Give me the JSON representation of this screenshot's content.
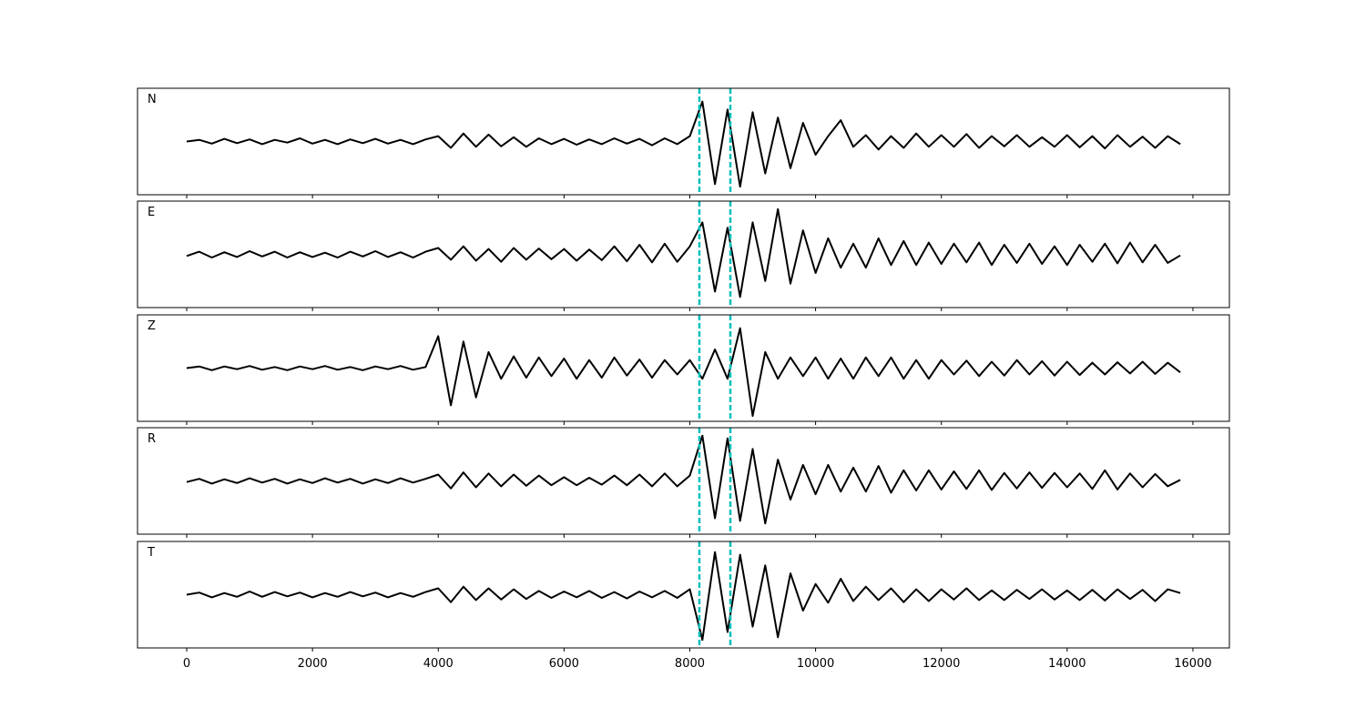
{
  "chart_data": {
    "type": "line",
    "x": [
      0,
      200,
      400,
      600,
      800,
      1000,
      1200,
      1400,
      1600,
      1800,
      2000,
      2200,
      2400,
      2600,
      2800,
      3000,
      3200,
      3400,
      3600,
      3800,
      4000,
      4200,
      4400,
      4600,
      4800,
      5000,
      5200,
      5400,
      5600,
      5800,
      6000,
      6200,
      6400,
      6600,
      6800,
      7000,
      7200,
      7400,
      7600,
      7800,
      8000,
      8200,
      8400,
      8600,
      8800,
      9000,
      9200,
      9400,
      9600,
      9800,
      10000,
      10200,
      10400,
      10600,
      10800,
      11000,
      11200,
      11400,
      11600,
      11800,
      12000,
      12200,
      12400,
      12600,
      12800,
      13000,
      13200,
      13400,
      13600,
      13800,
      14000,
      14200,
      14400,
      14600,
      14800,
      15000,
      15200,
      15400,
      15600,
      15800
    ],
    "series": [
      {
        "name": "N",
        "color": "#000000",
        "values": [
          0,
          0.03,
          -0.04,
          0.05,
          -0.03,
          0.04,
          -0.05,
          0.03,
          -0.02,
          0.06,
          -0.04,
          0.03,
          -0.05,
          0.04,
          -0.03,
          0.05,
          -0.04,
          0.03,
          -0.05,
          0.04,
          0.1,
          -0.12,
          0.15,
          -0.1,
          0.13,
          -0.09,
          0.08,
          -0.1,
          0.06,
          -0.05,
          0.05,
          -0.06,
          0.04,
          -0.05,
          0.06,
          -0.04,
          0.05,
          -0.07,
          0.06,
          -0.05,
          0.1,
          0.75,
          -0.8,
          0.6,
          -0.85,
          0.55,
          -0.6,
          0.45,
          -0.5,
          0.35,
          -0.25,
          0.1,
          0.4,
          -0.1,
          0.12,
          -0.15,
          0.1,
          -0.12,
          0.15,
          -0.1,
          0.12,
          -0.1,
          0.14,
          -0.12,
          0.1,
          -0.09,
          0.12,
          -0.1,
          0.08,
          -0.1,
          0.12,
          -0.11,
          0.1,
          -0.13,
          0.12,
          -0.1,
          0.09,
          -0.12,
          0.1,
          -0.05
        ]
      },
      {
        "name": "E",
        "color": "#000000",
        "values": [
          -0.03,
          0.05,
          -0.06,
          0.04,
          -0.05,
          0.06,
          -0.04,
          0.05,
          -0.06,
          0.04,
          -0.05,
          0.03,
          -0.06,
          0.05,
          -0.04,
          0.06,
          -0.05,
          0.04,
          -0.06,
          0.05,
          0.12,
          -0.1,
          0.15,
          -0.12,
          0.1,
          -0.14,
          0.12,
          -0.1,
          0.11,
          -0.09,
          0.1,
          -0.12,
          0.09,
          -0.11,
          0.15,
          -0.13,
          0.18,
          -0.15,
          0.2,
          -0.14,
          0.15,
          0.6,
          -0.7,
          0.5,
          -0.8,
          0.6,
          -0.5,
          0.85,
          -0.55,
          0.45,
          -0.35,
          0.3,
          -0.25,
          0.2,
          -0.25,
          0.3,
          -0.2,
          0.25,
          -0.2,
          0.22,
          -0.18,
          0.2,
          -0.15,
          0.22,
          -0.2,
          0.18,
          -0.16,
          0.2,
          -0.18,
          0.15,
          -0.2,
          0.18,
          -0.14,
          0.2,
          -0.17,
          0.22,
          -0.15,
          0.18,
          -0.16,
          -0.02
        ]
      },
      {
        "name": "Z",
        "color": "#000000",
        "values": [
          0,
          0.03,
          -0.04,
          0.03,
          -0.02,
          0.04,
          -0.03,
          0.02,
          -0.04,
          0.03,
          -0.02,
          0.04,
          -0.03,
          0.02,
          -0.04,
          0.03,
          -0.02,
          0.04,
          -0.03,
          0.02,
          0.6,
          -0.7,
          0.5,
          -0.55,
          0.3,
          -0.2,
          0.22,
          -0.18,
          0.2,
          -0.15,
          0.18,
          -0.2,
          0.15,
          -0.18,
          0.2,
          -0.14,
          0.16,
          -0.18,
          0.15,
          -0.12,
          0.15,
          -0.2,
          0.35,
          -0.2,
          0.75,
          -0.9,
          0.3,
          -0.2,
          0.2,
          -0.15,
          0.2,
          -0.2,
          0.18,
          -0.2,
          0.2,
          -0.15,
          0.2,
          -0.2,
          0.15,
          -0.2,
          0.15,
          -0.12,
          0.14,
          -0.15,
          0.12,
          -0.14,
          0.15,
          -0.12,
          0.13,
          -0.14,
          0.12,
          -0.13,
          0.1,
          -0.12,
          0.11,
          -0.1,
          0.12,
          -0.11,
          0.1,
          -0.08
        ]
      },
      {
        "name": "R",
        "color": "#000000",
        "values": [
          -0.02,
          0.04,
          -0.05,
          0.03,
          -0.04,
          0.05,
          -0.03,
          0.04,
          -0.05,
          0.03,
          -0.04,
          0.05,
          -0.03,
          0.04,
          -0.05,
          0.03,
          -0.04,
          0.05,
          -0.03,
          0.04,
          0.12,
          -0.14,
          0.16,
          -0.12,
          0.14,
          -0.1,
          0.12,
          -0.09,
          0.1,
          -0.08,
          0.07,
          -0.08,
          0.06,
          -0.07,
          0.1,
          -0.08,
          0.12,
          -0.1,
          0.14,
          -0.1,
          0.1,
          0.85,
          -0.7,
          0.8,
          -0.75,
          0.6,
          -0.8,
          0.4,
          -0.35,
          0.3,
          -0.25,
          0.3,
          -0.2,
          0.25,
          -0.2,
          0.28,
          -0.22,
          0.2,
          -0.18,
          0.2,
          -0.16,
          0.18,
          -0.15,
          0.2,
          -0.17,
          0.15,
          -0.14,
          0.16,
          -0.13,
          0.15,
          -0.12,
          0.14,
          -0.15,
          0.2,
          -0.16,
          0.14,
          -0.12,
          0.13,
          -0.1,
          0.02
        ]
      },
      {
        "name": "T",
        "color": "#000000",
        "values": [
          0,
          0.04,
          -0.05,
          0.03,
          -0.04,
          0.06,
          -0.04,
          0.05,
          -0.03,
          0.04,
          -0.05,
          0.03,
          -0.04,
          0.05,
          -0.03,
          0.04,
          -0.05,
          0.03,
          -0.04,
          0.05,
          0.12,
          -0.14,
          0.15,
          -0.1,
          0.12,
          -0.09,
          0.1,
          -0.08,
          0.07,
          -0.06,
          0.06,
          -0.05,
          0.07,
          -0.06,
          0.05,
          -0.07,
          0.06,
          -0.05,
          0.07,
          -0.06,
          0.1,
          -0.85,
          0.8,
          -0.7,
          0.75,
          -0.6,
          0.55,
          -0.8,
          0.4,
          -0.3,
          0.2,
          -0.15,
          0.3,
          -0.12,
          0.15,
          -0.1,
          0.12,
          -0.14,
          0.1,
          -0.12,
          0.1,
          -0.09,
          0.12,
          -0.1,
          0.08,
          -0.1,
          0.09,
          -0.08,
          0.1,
          -0.09,
          0.08,
          -0.1,
          0.09,
          -0.11,
          0.1,
          -0.08,
          0.09,
          -0.12,
          0.1,
          0.03
        ]
      }
    ],
    "xlim": [
      -782,
      16580
    ],
    "xticks": [
      0,
      2000,
      4000,
      6000,
      8000,
      10000,
      12000,
      14000,
      16000
    ],
    "ylim": [
      -1,
      1
    ],
    "vlines": [
      8152,
      8645
    ],
    "vline_color": "#00bfbf"
  }
}
